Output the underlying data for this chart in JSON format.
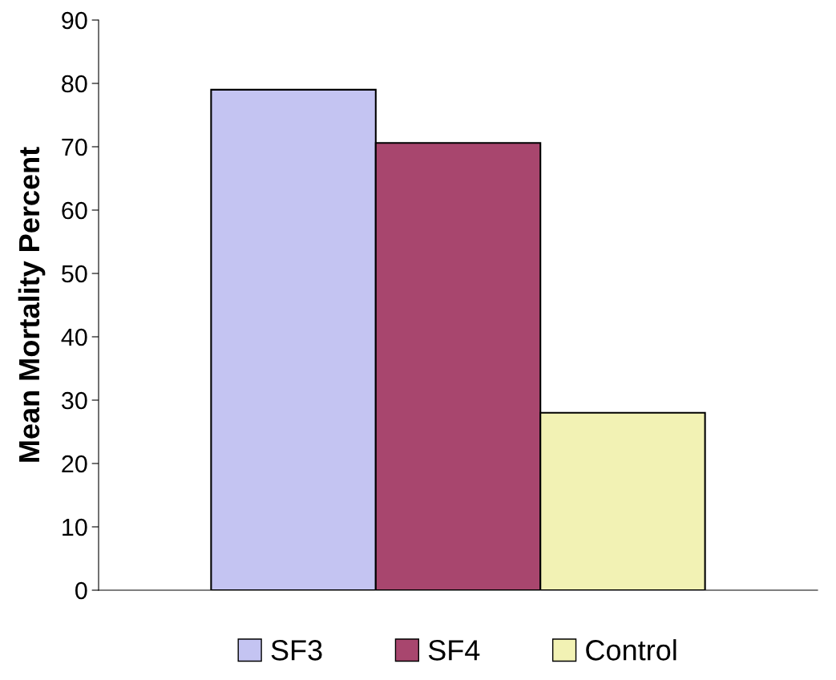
{
  "chart_data": {
    "type": "bar",
    "ylabel": "Mean Mortality Percent",
    "categories": [
      null
    ],
    "series": [
      {
        "name": "SF3",
        "color": "#c4c4f2",
        "values": [
          79
        ]
      },
      {
        "name": "SF4",
        "color": "#a8466e",
        "values": [
          70.6
        ]
      },
      {
        "name": "Control",
        "color": "#f2f2b4",
        "values": [
          28
        ]
      }
    ],
    "ylim": [
      0,
      90
    ],
    "yticks": [
      0,
      10,
      20,
      30,
      40,
      50,
      60,
      70,
      80,
      90
    ],
    "grid": false,
    "legend": "bottom"
  }
}
